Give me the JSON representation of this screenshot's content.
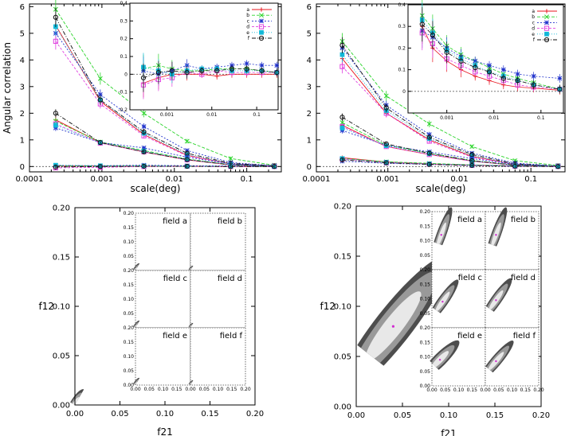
{
  "chart_data": [
    {
      "type": "line",
      "panel": "top-left",
      "xlabel": "scale(deg)",
      "ylabel": "Angular correlation",
      "xscale": "log",
      "xlim": [
        0.0001,
        0.3
      ],
      "ylim": [
        -0.2,
        6.1
      ],
      "xticks": [
        "0.0001",
        "0.001",
        "0.01",
        "0.1"
      ],
      "yticks": [
        "0",
        "1",
        "2",
        "3",
        "4",
        "5",
        "6"
      ],
      "x": [
        0.00023,
        0.00095,
        0.0038,
        0.015,
        0.06,
        0.24
      ],
      "series": [
        {
          "name": "a",
          "group": 1,
          "color": "#e8141e",
          "values": [
            5.3,
            2.45,
            1.2,
            0.42,
            0.1,
            0.02
          ]
        },
        {
          "name": "b",
          "group": 1,
          "color": "#2bd42b",
          "values": [
            5.9,
            3.3,
            2.0,
            0.95,
            0.3,
            0.05
          ]
        },
        {
          "name": "c",
          "group": 1,
          "color": "#2233cc",
          "values": [
            5.0,
            2.7,
            1.5,
            0.6,
            0.15,
            0.03
          ]
        },
        {
          "name": "d",
          "group": 1,
          "color": "#e040e0",
          "values": [
            4.7,
            2.35,
            1.15,
            0.4,
            0.1,
            0.02
          ]
        },
        {
          "name": "e",
          "group": 1,
          "color": "#12b8d8",
          "values": [
            5.25,
            2.5,
            1.25,
            0.45,
            0.1,
            0.02
          ]
        },
        {
          "name": "f",
          "group": 1,
          "color": "#111111",
          "values": [
            5.6,
            2.5,
            1.3,
            0.5,
            0.12,
            0.03
          ]
        },
        {
          "name": "a",
          "group": 2,
          "color": "#e8141e",
          "values": [
            1.75,
            0.9,
            0.55,
            0.25,
            0.06,
            0.01
          ]
        },
        {
          "name": "b",
          "group": 2,
          "color": "#2bd42b",
          "values": [
            1.7,
            0.92,
            0.6,
            0.28,
            0.07,
            0.01
          ]
        },
        {
          "name": "c",
          "group": 2,
          "color": "#2233cc",
          "values": [
            1.45,
            0.9,
            0.7,
            0.35,
            0.1,
            0.02
          ]
        },
        {
          "name": "d",
          "group": 2,
          "color": "#e040e0",
          "values": [
            1.6,
            0.88,
            0.55,
            0.25,
            0.06,
            0.01
          ]
        },
        {
          "name": "e",
          "group": 2,
          "color": "#12b8d8",
          "values": [
            1.55,
            0.9,
            0.58,
            0.27,
            0.07,
            0.01
          ]
        },
        {
          "name": "f",
          "group": 2,
          "color": "#111111",
          "values": [
            2.0,
            0.9,
            0.55,
            0.26,
            0.06,
            0.01
          ]
        },
        {
          "name": "a",
          "group": 3,
          "color": "#e8141e",
          "values": [
            0.02,
            0.02,
            0.01,
            0.01,
            0.0,
            0.0
          ]
        },
        {
          "name": "b",
          "group": 3,
          "color": "#2bd42b",
          "values": [
            0.03,
            0.02,
            0.02,
            0.01,
            0.01,
            0.0
          ]
        },
        {
          "name": "c",
          "group": 3,
          "color": "#2233cc",
          "values": [
            0.04,
            0.03,
            0.05,
            0.03,
            0.02,
            0.0
          ]
        },
        {
          "name": "d",
          "group": 3,
          "color": "#e040e0",
          "values": [
            -0.05,
            -0.03,
            0.0,
            0.01,
            0.0,
            0.0
          ]
        },
        {
          "name": "e",
          "group": 3,
          "color": "#12b8d8",
          "values": [
            0.05,
            0.03,
            0.02,
            0.01,
            0.01,
            0.0
          ]
        },
        {
          "name": "f",
          "group": 3,
          "color": "#111111",
          "values": [
            -0.02,
            0.0,
            0.01,
            0.01,
            0.0,
            0.0
          ]
        }
      ],
      "inset": {
        "xscale": "log",
        "xlim": [
          0.00015,
          0.3
        ],
        "ylim": [
          -0.2,
          0.4
        ],
        "xticks": [
          "0.001",
          "0.01",
          "0.1"
        ],
        "yticks": [
          "-0.2",
          "-0.1",
          "0",
          "0.1",
          "0.2",
          "0.3",
          "0.4"
        ],
        "legend": [
          "a",
          "b",
          "c",
          "d",
          "e",
          "f"
        ],
        "legend_position": "top-right",
        "x": [
          0.0003,
          0.00065,
          0.0013,
          0.0028,
          0.006,
          0.013,
          0.028,
          0.06,
          0.13,
          0.28
        ],
        "series": [
          {
            "name": "a",
            "color": "#e8141e",
            "values": [
              -0.05,
              -0.02,
              0.0,
              0.0,
              0.0,
              -0.01,
              0.0,
              0.0,
              0.0,
              0.0
            ]
          },
          {
            "name": "b",
            "color": "#2bd42b",
            "values": [
              0.03,
              0.05,
              0.03,
              0.02,
              0.02,
              0.03,
              0.03,
              0.03,
              0.02,
              0.01
            ]
          },
          {
            "name": "c",
            "color": "#2233cc",
            "values": [
              0.02,
              0.0,
              0.02,
              0.05,
              0.03,
              0.04,
              0.05,
              0.06,
              0.05,
              0.05
            ]
          },
          {
            "name": "d",
            "color": "#e040e0",
            "values": [
              -0.06,
              -0.03,
              -0.02,
              0.01,
              0.0,
              0.02,
              0.01,
              0.01,
              0.01,
              0.01
            ]
          },
          {
            "name": "e",
            "color": "#12b8d8",
            "values": [
              0.04,
              0.02,
              0.0,
              0.02,
              0.03,
              0.03,
              0.02,
              0.02,
              0.02,
              0.01
            ]
          },
          {
            "name": "f",
            "color": "#111111",
            "values": [
              -0.02,
              0.01,
              0.02,
              0.01,
              0.02,
              0.02,
              0.03,
              0.03,
              0.02,
              0.01
            ]
          }
        ]
      }
    },
    {
      "type": "line",
      "panel": "top-right",
      "xlabel": "scale(deg)",
      "ylabel": "",
      "xscale": "log",
      "xlim": [
        0.0001,
        0.3
      ],
      "ylim": [
        -0.2,
        6.1
      ],
      "xticks": [
        "0.0001",
        "0.001",
        "0.01",
        "0.1"
      ],
      "yticks": [
        "0",
        "1",
        "2",
        "3",
        "4",
        "5",
        "6"
      ],
      "x": [
        0.00023,
        0.00095,
        0.0038,
        0.015,
        0.06,
        0.24
      ],
      "series": [
        {
          "name": "a",
          "group": 1,
          "color": "#e8141e",
          "values": [
            4.05,
            2.0,
            1.0,
            0.38,
            0.08,
            0.01
          ]
        },
        {
          "name": "b",
          "group": 1,
          "color": "#2bd42b",
          "values": [
            4.7,
            2.65,
            1.6,
            0.75,
            0.22,
            0.04
          ]
        },
        {
          "name": "c",
          "group": 1,
          "color": "#2233cc",
          "values": [
            4.45,
            2.3,
            1.2,
            0.5,
            0.13,
            0.02
          ]
        },
        {
          "name": "d",
          "group": 1,
          "color": "#e040e0",
          "values": [
            3.75,
            2.0,
            0.95,
            0.35,
            0.08,
            0.01
          ]
        },
        {
          "name": "e",
          "group": 1,
          "color": "#12b8d8",
          "values": [
            4.2,
            2.1,
            1.05,
            0.4,
            0.09,
            0.02
          ]
        },
        {
          "name": "f",
          "group": 1,
          "color": "#111111",
          "values": [
            4.55,
            2.2,
            1.1,
            0.45,
            0.1,
            0.02
          ]
        },
        {
          "name": "a",
          "group": 2,
          "color": "#e8141e",
          "values": [
            1.55,
            0.75,
            0.45,
            0.2,
            0.05,
            0.01
          ]
        },
        {
          "name": "b",
          "group": 2,
          "color": "#2bd42b",
          "values": [
            1.65,
            0.8,
            0.5,
            0.22,
            0.06,
            0.01
          ]
        },
        {
          "name": "c",
          "group": 2,
          "color": "#2233cc",
          "values": [
            1.35,
            0.8,
            0.55,
            0.3,
            0.08,
            0.02
          ]
        },
        {
          "name": "d",
          "group": 2,
          "color": "#e040e0",
          "values": [
            1.5,
            0.75,
            0.45,
            0.2,
            0.05,
            0.01
          ]
        },
        {
          "name": "e",
          "group": 2,
          "color": "#12b8d8",
          "values": [
            1.45,
            0.78,
            0.48,
            0.21,
            0.05,
            0.01
          ]
        },
        {
          "name": "f",
          "group": 2,
          "color": "#111111",
          "values": [
            1.85,
            0.85,
            0.5,
            0.22,
            0.05,
            0.01
          ]
        },
        {
          "name": "a",
          "group": 3,
          "color": "#e8141e",
          "values": [
            0.33,
            0.17,
            0.1,
            0.05,
            0.02,
            0.0
          ]
        },
        {
          "name": "b",
          "group": 3,
          "color": "#2bd42b",
          "values": [
            0.3,
            0.18,
            0.12,
            0.06,
            0.02,
            0.01
          ]
        },
        {
          "name": "c",
          "group": 3,
          "color": "#2233cc",
          "values": [
            0.2,
            0.12,
            0.08,
            0.05,
            0.02,
            0.0
          ]
        },
        {
          "name": "d",
          "group": 3,
          "color": "#e040e0",
          "values": [
            0.28,
            0.15,
            0.09,
            0.04,
            0.01,
            0.0
          ]
        },
        {
          "name": "e",
          "group": 3,
          "color": "#12b8d8",
          "values": [
            0.3,
            0.16,
            0.1,
            0.05,
            0.02,
            0.0
          ]
        },
        {
          "name": "f",
          "group": 3,
          "color": "#111111",
          "values": [
            0.25,
            0.14,
            0.08,
            0.04,
            0.01,
            0.0
          ]
        }
      ],
      "inset": {
        "xscale": "log",
        "xlim": [
          0.00015,
          0.3
        ],
        "ylim": [
          -0.1,
          0.4
        ],
        "xticks": [
          "0.001",
          "0.01",
          "0.1"
        ],
        "yticks": [
          "0",
          "0.1",
          "0.2",
          "0.3",
          "0.4"
        ],
        "legend": [
          "a",
          "b",
          "c",
          "d",
          "e",
          "f"
        ],
        "legend_position": "top-right",
        "x": [
          0.0003,
          0.0005,
          0.001,
          0.002,
          0.004,
          0.008,
          0.016,
          0.032,
          0.07,
          0.25
        ],
        "series": [
          {
            "name": "a",
            "color": "#e8141e",
            "values": [
              0.3,
              0.2,
              0.14,
              0.1,
              0.07,
              0.05,
              0.03,
              0.02,
              0.015,
              0.005
            ]
          },
          {
            "name": "b",
            "color": "#2bd42b",
            "values": [
              0.35,
              0.29,
              0.21,
              0.17,
              0.14,
              0.11,
              0.08,
              0.06,
              0.04,
              0.01
            ]
          },
          {
            "name": "c",
            "color": "#2233cc",
            "values": [
              0.28,
              0.25,
              0.2,
              0.16,
              0.14,
              0.12,
              0.1,
              0.08,
              0.07,
              0.06
            ]
          },
          {
            "name": "d",
            "color": "#e040e0",
            "values": [
              0.27,
              0.22,
              0.15,
              0.12,
              0.09,
              0.07,
              0.05,
              0.03,
              0.02,
              0.01
            ]
          },
          {
            "name": "e",
            "color": "#12b8d8",
            "values": [
              0.33,
              0.27,
              0.19,
              0.15,
              0.12,
              0.09,
              0.07,
              0.05,
              0.03,
              0.01
            ]
          },
          {
            "name": "f",
            "color": "#111111",
            "values": [
              0.31,
              0.26,
              0.18,
              0.14,
              0.11,
              0.09,
              0.06,
              0.05,
              0.03,
              0.01
            ]
          }
        ]
      }
    },
    {
      "type": "contour",
      "panel": "bottom-left",
      "xlabel": "f21",
      "ylabel": "f12",
      "xlim": [
        0,
        0.2
      ],
      "ylim": [
        0,
        0.2
      ],
      "xticks": [
        "0.00",
        "0.05",
        "0.10",
        "0.15",
        "0.20"
      ],
      "yticks": [
        "0.00",
        "0.05",
        "0.10",
        "0.15",
        "0.20"
      ],
      "ellipse": {
        "cx": 0,
        "cy": 0,
        "rx": 0.02,
        "ry": 0.006,
        "angle": -60
      },
      "fields": [
        {
          "label": "field a"
        },
        {
          "label": "field b"
        },
        {
          "label": "field c"
        },
        {
          "label": "field d"
        },
        {
          "label": "field e"
        },
        {
          "label": "field f"
        }
      ],
      "inset_xticks": [
        "0.00",
        "0.05",
        "0.10",
        "0.15",
        "0.20"
      ],
      "inset_yticks": [
        "0.00",
        "0.05",
        "0.10",
        "0.15",
        "0.20"
      ],
      "inset_ellipses": [
        {
          "cx": 0,
          "cy": 0,
          "rx": 0.03,
          "ry": 0.01,
          "angle": -60
        },
        {
          "cx": 0,
          "cy": 0,
          "rx": 0.02,
          "ry": 0.008,
          "angle": -60
        },
        {
          "cx": 0,
          "cy": 0,
          "rx": 0.03,
          "ry": 0.01,
          "angle": -60
        },
        {
          "cx": 0,
          "cy": 0,
          "rx": 0.02,
          "ry": 0.008,
          "angle": -60
        },
        {
          "cx": 0,
          "cy": 0,
          "rx": 0.03,
          "ry": 0.01,
          "angle": -60
        },
        {
          "cx": 0,
          "cy": 0,
          "rx": 0.02,
          "ry": 0.008,
          "angle": -60
        }
      ]
    },
    {
      "type": "contour",
      "panel": "bottom-right",
      "xlabel": "f21",
      "ylabel": "f12",
      "xlim": [
        0,
        0.2
      ],
      "ylim": [
        0,
        0.2
      ],
      "xticks": [
        "0.00",
        "0.05",
        "0.10",
        "0.15",
        "0.20"
      ],
      "yticks": [
        "0.00",
        "0.05",
        "0.10",
        "0.15",
        "0.20"
      ],
      "best_fit": {
        "f21": 0.04,
        "f12": 0.08
      },
      "ellipse": {
        "cx": 0.04,
        "cy": 0.08,
        "rx": 0.095,
        "ry": 0.02,
        "angle": -52
      },
      "fields": [
        {
          "label": "field a",
          "f21": 0.035,
          "f12": 0.12
        },
        {
          "label": "field b",
          "f21": 0.04,
          "f12": 0.12
        },
        {
          "label": "field c",
          "f21": 0.04,
          "f12": 0.09
        },
        {
          "label": "field d",
          "f21": 0.04,
          "f12": 0.095
        },
        {
          "label": "field e",
          "f21": 0.03,
          "f12": 0.09
        },
        {
          "label": "field f",
          "f21": 0.04,
          "f12": 0.085
        }
      ],
      "inset_xticks": [
        "0.00",
        "0.05",
        "0.10",
        "0.15",
        "0.20"
      ],
      "inset_yticks": [
        "0.00",
        "0.05",
        "0.10",
        "0.15",
        "0.20"
      ],
      "inset_ellipses": [
        {
          "cx": 0.035,
          "cy": 0.12,
          "rx": 0.11,
          "ry": 0.018,
          "angle": -70
        },
        {
          "cx": 0.04,
          "cy": 0.12,
          "rx": 0.11,
          "ry": 0.018,
          "angle": -70
        },
        {
          "cx": 0.04,
          "cy": 0.09,
          "rx": 0.1,
          "ry": 0.02,
          "angle": -55
        },
        {
          "cx": 0.04,
          "cy": 0.095,
          "rx": 0.1,
          "ry": 0.02,
          "angle": -55
        },
        {
          "cx": 0.03,
          "cy": 0.09,
          "rx": 0.1,
          "ry": 0.025,
          "angle": -45
        },
        {
          "cx": 0.04,
          "cy": 0.085,
          "rx": 0.1,
          "ry": 0.02,
          "angle": -50
        }
      ]
    }
  ]
}
